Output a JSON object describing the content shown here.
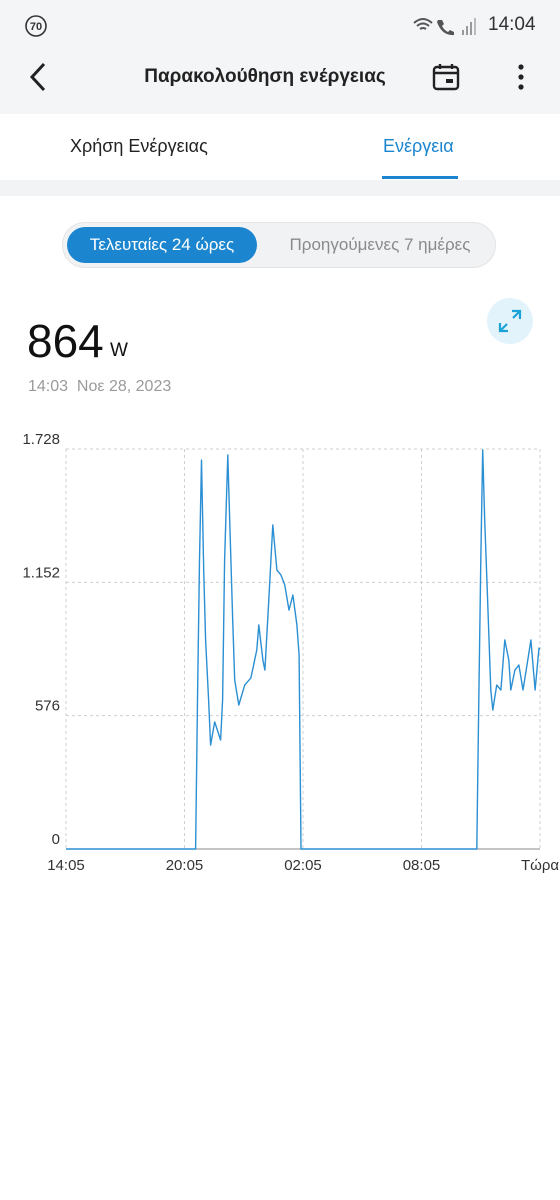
{
  "status_bar": {
    "badge": "70",
    "time": "14:04"
  },
  "header": {
    "title": "Παρακολούθηση ενέργειας"
  },
  "tabs": [
    "Χρήση Ενέργειας",
    "Ενέργεια"
  ],
  "period_toggle": [
    "Τελευταίες 24 ώρες",
    "Προηγούμενες 7 ημέρες"
  ],
  "reading": {
    "value": 864,
    "unit": "W",
    "timestamp": "14:03  Νοε 28, 2023"
  },
  "chart_data": {
    "type": "line",
    "color": "#2b8fd3",
    "grid": true,
    "x": [
      0,
      6.56,
      6.66,
      6.76,
      6.86,
      6.97,
      7.07,
      7.22,
      7.32,
      7.53,
      7.83,
      7.93,
      8.03,
      8.19,
      8.29,
      8.44,
      8.54,
      8.75,
      9.05,
      9.36,
      9.66,
      9.76,
      9.97,
      10.07,
      10.27,
      10.47,
      10.68,
      10.88,
      11.08,
      11.29,
      11.49,
      11.69,
      11.8,
      11.9,
      20.8,
      20.9,
      21.0,
      21.1,
      21.2,
      21.31,
      21.51,
      21.61,
      21.81,
      22.02,
      22.22,
      22.42,
      22.52,
      22.73,
      22.93,
      23.14,
      23.34,
      23.54,
      23.75,
      23.95,
      24
    ],
    "values": [
      0,
      0,
      644,
      1248,
      1680,
      1205,
      903,
      644,
      449,
      549,
      471,
      644,
      1248,
      1702,
      1421,
      989,
      730,
      622,
      708,
      739,
      860,
      968,
      816,
      773,
      1076,
      1400,
      1205,
      1184,
      1140,
      1032,
      1097,
      968,
      838,
      0,
      0,
      644,
      1248,
      1724,
      1421,
      1162,
      687,
      600,
      708,
      687,
      903,
      816,
      687,
      773,
      795,
      687,
      795,
      903,
      687,
      868,
      864
    ],
    "xlim": [
      0,
      24
    ],
    "xticks": [
      {
        "value": 0,
        "label": "14:05"
      },
      {
        "value": 6,
        "label": "20:05"
      },
      {
        "value": 12,
        "label": "02:05"
      },
      {
        "value": 18,
        "label": "08:05"
      },
      {
        "value": 24,
        "label": "Τώρα"
      }
    ],
    "ylim": [
      0,
      1728
    ],
    "yticks": [
      0,
      576,
      {
        "value": 1152,
        "label": "1.152"
      },
      {
        "value": 1728,
        "label": "1.728"
      }
    ]
  }
}
